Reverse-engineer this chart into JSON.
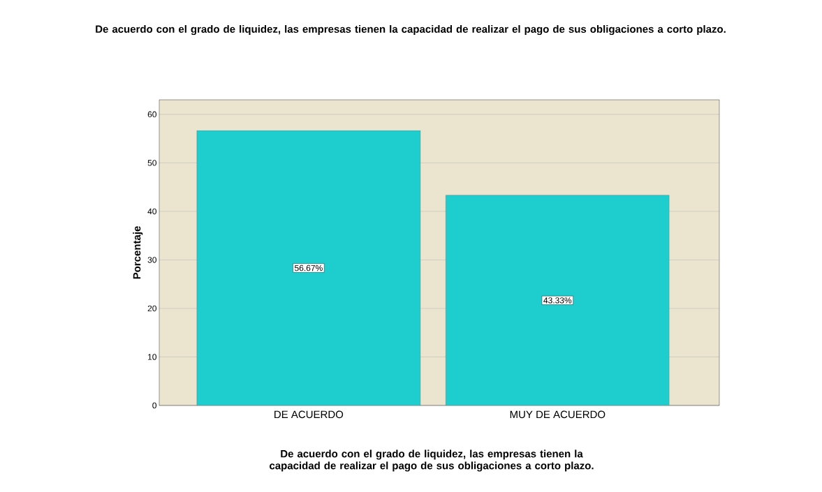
{
  "chart_data": {
    "type": "bar",
    "title": "De acuerdo con el grado de liquidez, las empresas tienen la capacidad de realizar el pago de sus obligaciones a corto plazo.",
    "xlabel": "De acuerdo con el grado de liquidez, las empresas tienen la capacidad de realizar el pago de sus obligaciones a corto plazo.",
    "ylabel": "Porcentaje",
    "categories": [
      "DE ACUERDO",
      "MUY DE ACUERDO"
    ],
    "values": [
      56.67,
      43.33
    ],
    "value_labels": [
      "56.67%",
      "43.33%"
    ],
    "color": "#1ecece",
    "ylim": [
      0,
      63
    ],
    "yticks": [
      0,
      10,
      20,
      30,
      40,
      50,
      60
    ],
    "grid": "y"
  }
}
